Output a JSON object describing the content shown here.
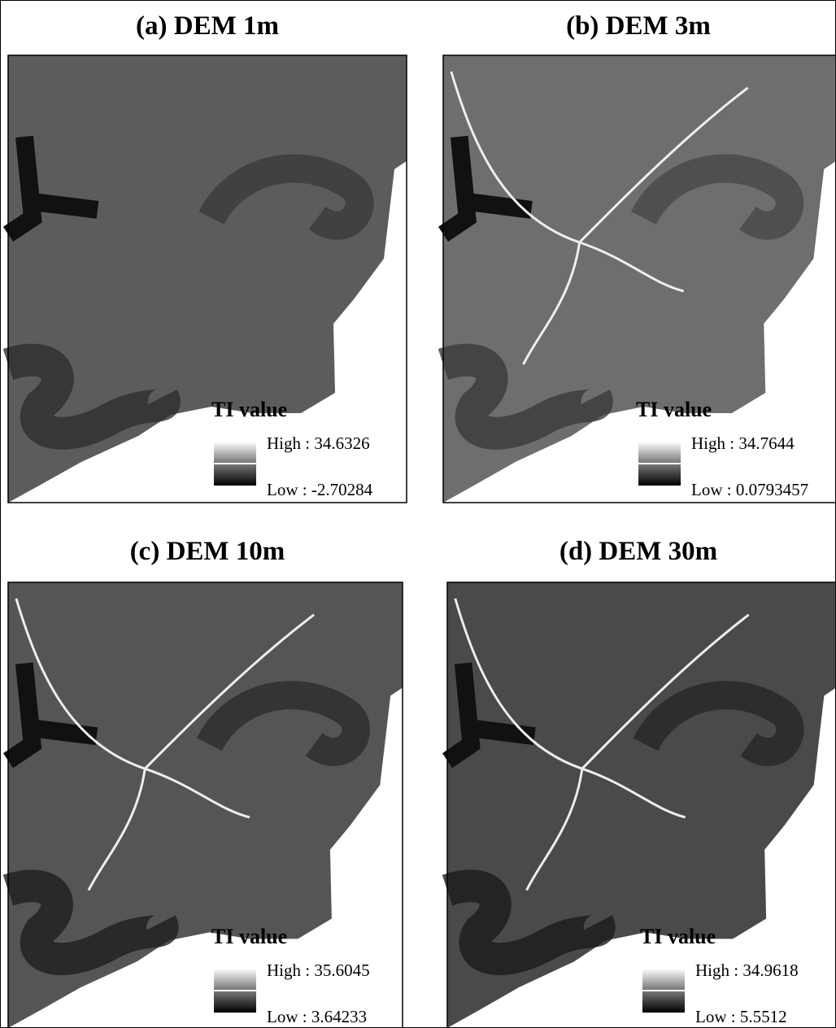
{
  "panels": [
    {
      "title": "(a) DEM 1m",
      "legend_title": "TI value",
      "high": "High : 34.6326",
      "low": "Low : -2.70284"
    },
    {
      "title": "(b) DEM 3m",
      "legend_title": "TI value",
      "high": "High : 34.7644",
      "low": "Low : 0.0793457"
    },
    {
      "title": "(c) DEM 10m",
      "legend_title": "TI value",
      "high": "High : 35.6045",
      "low": "Low : 3.64233"
    },
    {
      "title": "(d) DEM 30m",
      "legend_title": "TI value",
      "high": "High : 34.9618",
      "low": "Low : 5.5512"
    }
  ]
}
